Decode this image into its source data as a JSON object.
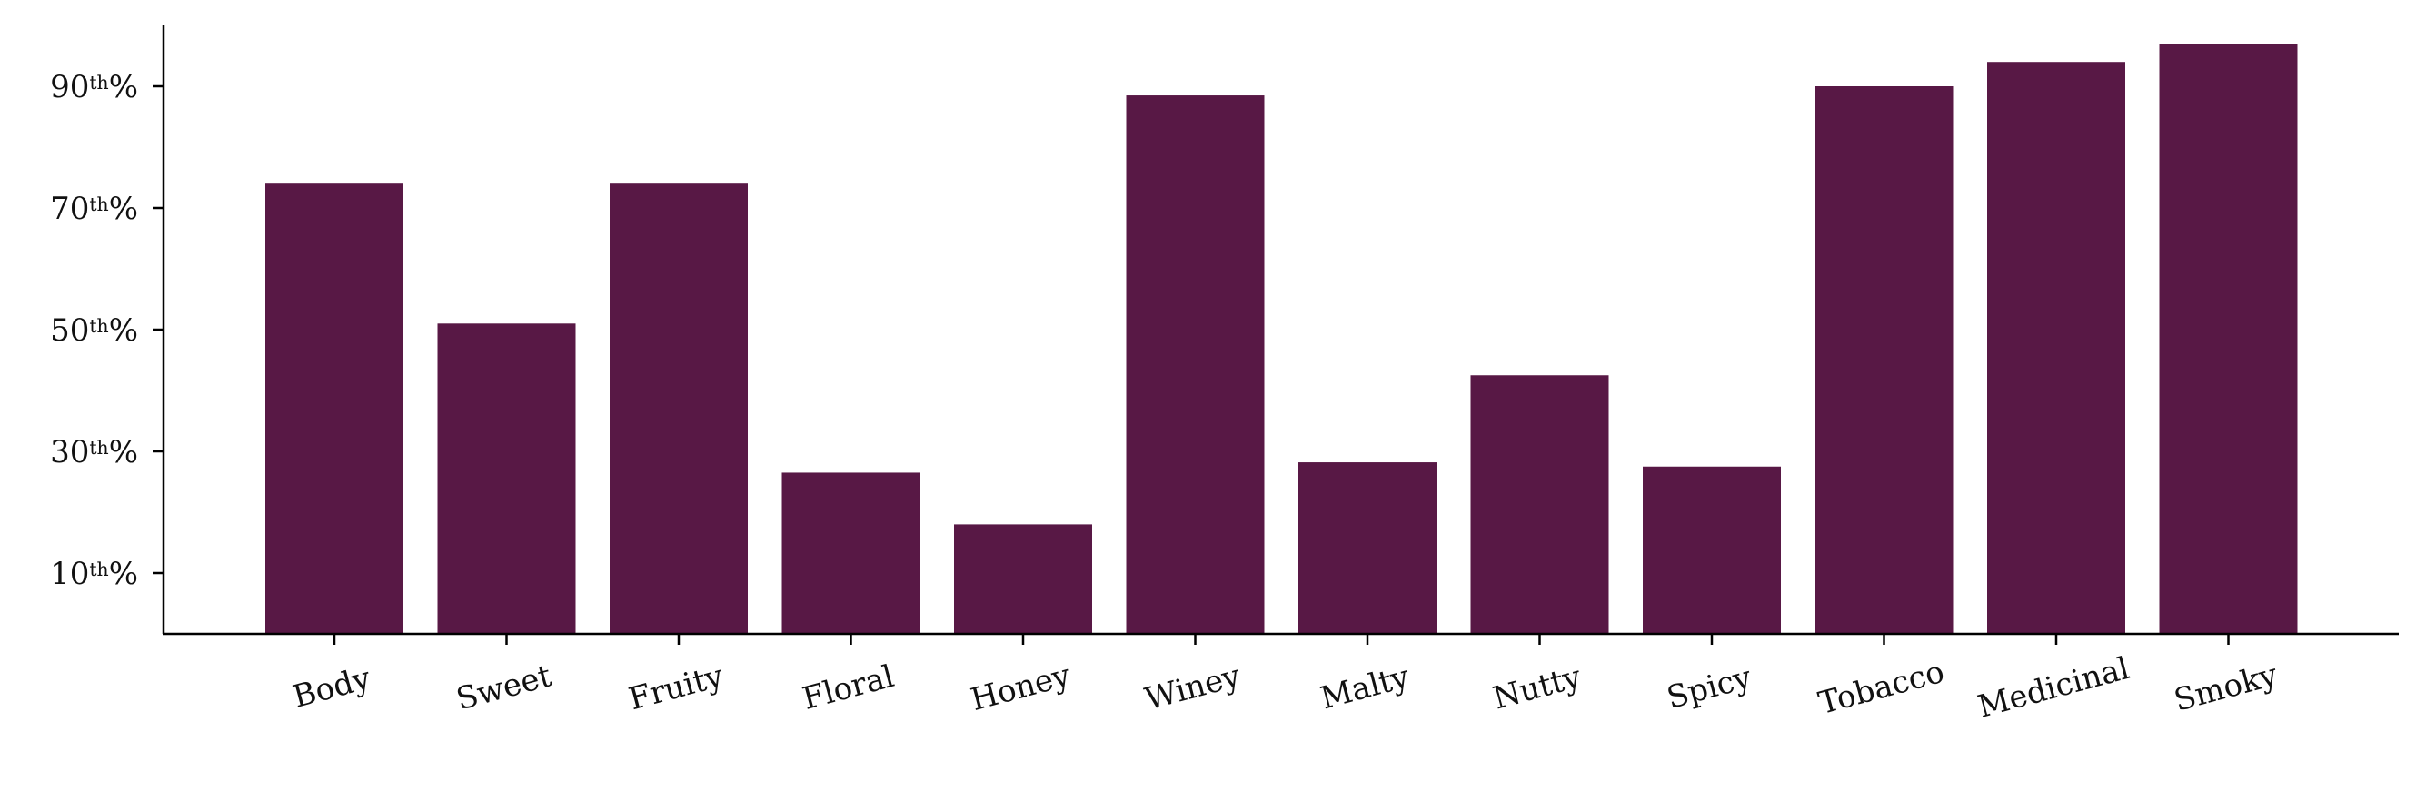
{
  "chart_data": {
    "type": "bar",
    "title": "",
    "xlabel": "",
    "ylabel": "",
    "categories": [
      "Body",
      "Sweet",
      "Fruity",
      "Floral",
      "Honey",
      "Winey",
      "Malty",
      "Nutty",
      "Spicy",
      "Tobacco",
      "Medicinal",
      "Smoky"
    ],
    "values": [
      74,
      51,
      74,
      26.5,
      18,
      88.5,
      28.2,
      42.5,
      27.5,
      90,
      94,
      97
    ],
    "ylim": [
      0,
      100
    ],
    "yticks": [
      {
        "value": 10,
        "number": "10",
        "sup": "th",
        "suffix": "%"
      },
      {
        "value": 30,
        "number": "30",
        "sup": "th",
        "suffix": "%"
      },
      {
        "value": 50,
        "number": "50",
        "sup": "th",
        "suffix": "%"
      },
      {
        "value": 70,
        "number": "70",
        "sup": "th",
        "suffix": "%"
      },
      {
        "value": 90,
        "number": "90",
        "sup": "th",
        "suffix": "%"
      }
    ],
    "bar_color": "#581845",
    "grid": false,
    "legend": "none"
  }
}
